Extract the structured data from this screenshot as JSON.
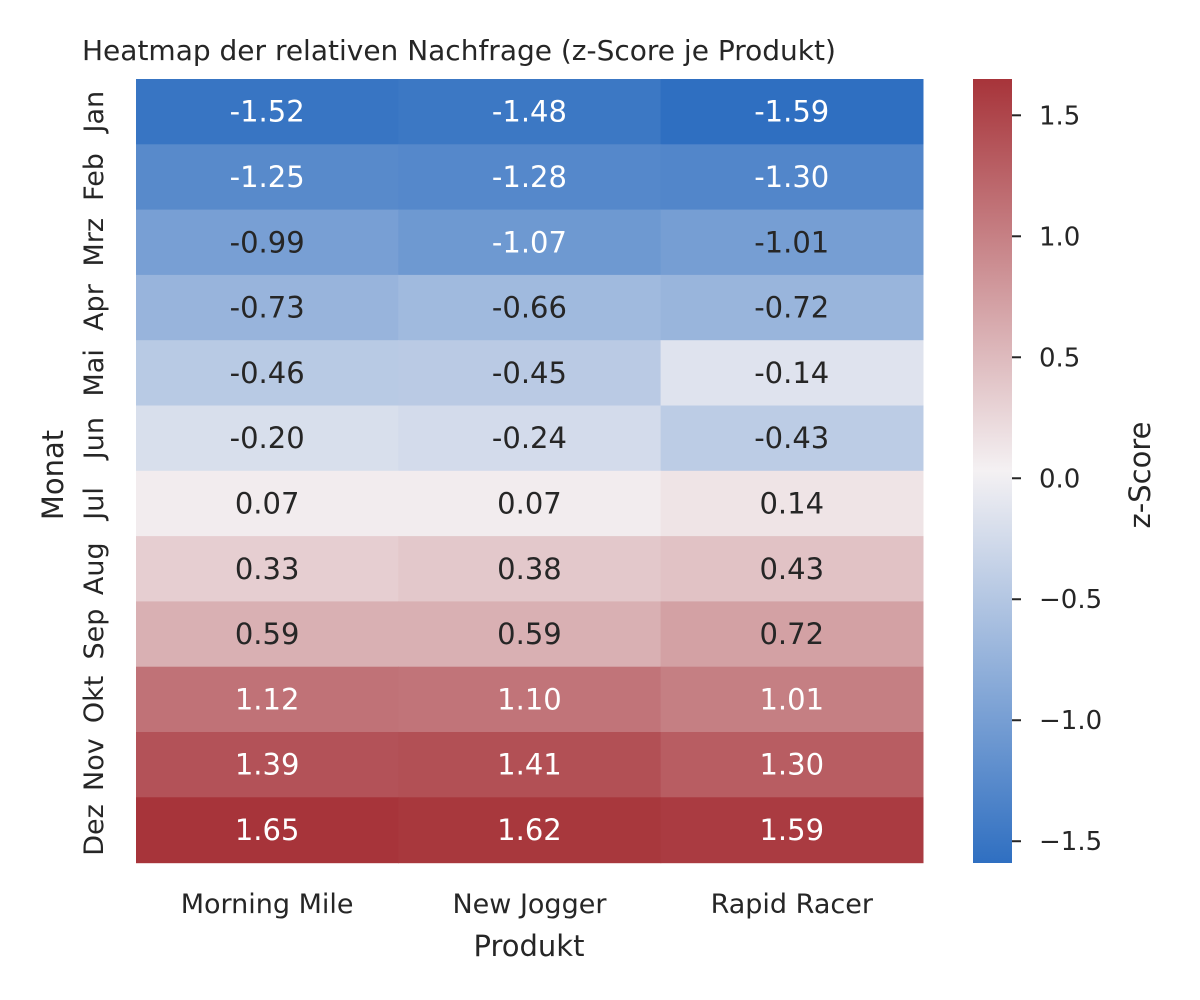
{
  "chart_data": {
    "type": "heatmap",
    "title": "Heatmap der relativen Nachfrage (z-Score je Produkt)",
    "xlabel": "Produkt",
    "ylabel": "Monat",
    "x_categories": [
      "Morning Mile",
      "New Jogger",
      "Rapid Racer"
    ],
    "y_categories": [
      "Jan",
      "Feb",
      "Mrz",
      "Apr",
      "Mai",
      "Jun",
      "Jul",
      "Aug",
      "Sep",
      "Okt",
      "Nov",
      "Dez"
    ],
    "values": [
      [
        -1.52,
        -1.48,
        -1.59
      ],
      [
        -1.25,
        -1.28,
        -1.3
      ],
      [
        -0.99,
        -1.07,
        -1.01
      ],
      [
        -0.73,
        -0.66,
        -0.72
      ],
      [
        -0.46,
        -0.45,
        -0.14
      ],
      [
        -0.2,
        -0.24,
        -0.43
      ],
      [
        0.07,
        0.07,
        0.14
      ],
      [
        0.33,
        0.38,
        0.43
      ],
      [
        0.59,
        0.59,
        0.72
      ],
      [
        1.12,
        1.1,
        1.01
      ],
      [
        1.39,
        1.41,
        1.3
      ],
      [
        1.65,
        1.62,
        1.59
      ]
    ],
    "annotated": true,
    "colorbar": {
      "label": "z-Score",
      "range": [
        -1.59,
        1.65
      ],
      "ticks": [
        1.5,
        1.0,
        0.5,
        0.0,
        -0.5,
        -1.0,
        -1.5
      ],
      "tick_labels": [
        "1.5",
        "1.0",
        "0.5",
        "0.0",
        "−0.5",
        "−1.0",
        "−1.5"
      ],
      "colormap": "diverging blue-white-red",
      "colors": {
        "low": "#2f6fc1",
        "mid": "#f4f1f3",
        "high": "#a7343a"
      }
    }
  }
}
